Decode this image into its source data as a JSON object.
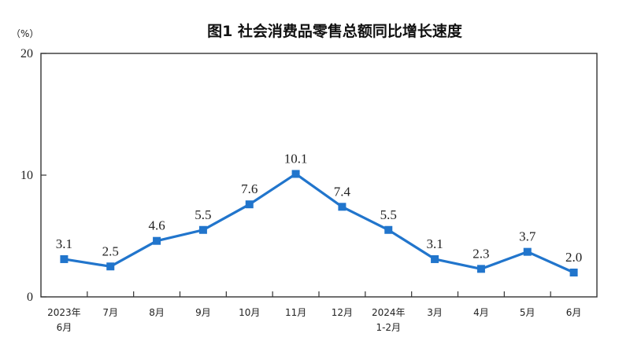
{
  "chart_data": {
    "type": "line",
    "title": "图1  社会消费品零售总额同比增长速度",
    "unit_label": "（%）",
    "categories": [
      [
        "2023年",
        "6月"
      ],
      [
        "7月"
      ],
      [
        "8月"
      ],
      [
        "9月"
      ],
      [
        "10月"
      ],
      [
        "11月"
      ],
      [
        "12月"
      ],
      [
        "2024年",
        "1-2月"
      ],
      [
        "3月"
      ],
      [
        "4月"
      ],
      [
        "5月"
      ],
      [
        "6月"
      ]
    ],
    "values": [
      3.1,
      2.5,
      4.6,
      5.5,
      7.6,
      10.1,
      7.4,
      5.5,
      3.1,
      2.3,
      3.7,
      2.0
    ],
    "data_labels": [
      "3.1",
      "2.5",
      "4.6",
      "5.5",
      "7.6",
      "10.1",
      "7.4",
      "5.5",
      "3.1",
      "2.3",
      "3.7",
      "2.0"
    ],
    "ylim": [
      0,
      20
    ],
    "yticks": [
      0,
      10,
      20
    ],
    "series_color": "#2175cc",
    "grid": false,
    "legend": "none"
  }
}
